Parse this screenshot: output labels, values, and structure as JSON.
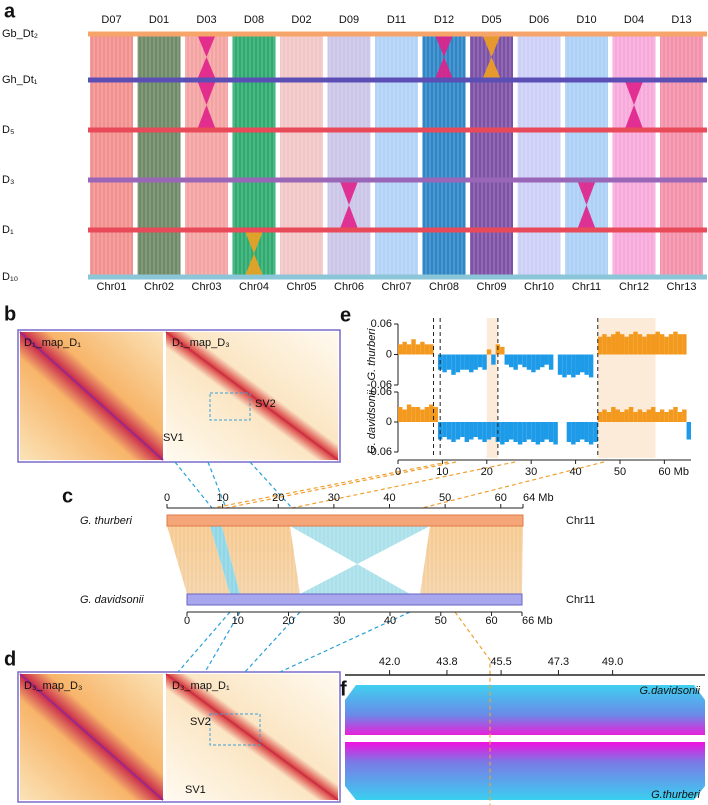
{
  "panel_labels": [
    "a",
    "b",
    "c",
    "d",
    "e",
    "f"
  ],
  "panel_a": {
    "columns": [
      "D07",
      "D01",
      "D03",
      "D08",
      "D02",
      "D09",
      "D11",
      "D12",
      "D05",
      "D06",
      "D10",
      "D04",
      "D13"
    ],
    "chromosomes": [
      "Chr01",
      "Chr02",
      "Chr03",
      "Chr04",
      "Chr05",
      "Chr06",
      "Chr07",
      "Chr08",
      "Chr09",
      "Chr10",
      "Chr11",
      "Chr12",
      "Chr13"
    ],
    "column_colors": [
      "#f2908e",
      "#6e8a66",
      "#f4a3a3",
      "#2fab70",
      "#f3c6c6",
      "#cbc5e8",
      "#b2d2f6",
      "#2f86c6",
      "#7d52a6",
      "#ccd0f6",
      "#acd0f6",
      "#f6a9da",
      "#f391aa"
    ],
    "rows": [
      "Gb_Dt₂",
      "Gh_Dt₁",
      "D₅",
      "D₃",
      "D₁",
      "D₁₀"
    ],
    "row_colors": [
      "#f6a46a",
      "#5b4fb6",
      "#e84a5a",
      "#9a66b8",
      "#e84a5a",
      "#8ac6d8"
    ]
  },
  "panel_b": {
    "titles": [
      "D₁_map_D₁",
      "D₁_map_D₃"
    ],
    "sv_labels": [
      "SV1",
      "SV2"
    ]
  },
  "panel_c": {
    "top": {
      "name": "G. thurberi",
      "chromosome": "Chr11",
      "xlim": [
        0,
        64
      ],
      "xticks": [
        0,
        10,
        20,
        30,
        40,
        50,
        60,
        {
          "value": 64,
          "label": "64 Mb"
        }
      ]
    },
    "bottom": {
      "name": "G. davidsonii",
      "chromosome": "Chr11",
      "xlim": [
        0,
        66
      ],
      "xticks": [
        0,
        10,
        20,
        30,
        40,
        50,
        60,
        {
          "value": 66,
          "label": "66 Mb"
        }
      ]
    }
  },
  "panel_d": {
    "titles": [
      "D₃_map_D₃",
      "D₃_map_D₁"
    ],
    "sv_labels": [
      "SV2",
      "SV1"
    ]
  },
  "panel_e": {
    "type": "bar",
    "xlim": [
      0,
      66
    ],
    "xticks": [
      0,
      10,
      20,
      30,
      40,
      50,
      {
        "value": 60,
        "label": "60 Mb"
      }
    ],
    "positive_color": "#f39a1e",
    "negative_color": "#1e9be8",
    "breakpoints": [
      8,
      9.5,
      22.5,
      45
    ],
    "highlights": [
      [
        20,
        22.5
      ],
      [
        45,
        58
      ]
    ],
    "x": [
      0,
      1,
      2,
      3,
      4,
      5,
      6,
      7,
      8,
      9,
      10,
      11,
      12,
      13,
      14,
      15,
      16,
      17,
      18,
      19,
      20,
      21,
      22,
      23,
      24,
      25,
      26,
      27,
      28,
      29,
      30,
      31,
      32,
      33,
      34,
      35,
      36,
      37,
      38,
      39,
      40,
      41,
      42,
      43,
      44,
      45,
      46,
      47,
      48,
      49,
      50,
      51,
      52,
      53,
      54,
      55,
      56,
      57,
      58,
      59,
      60,
      61,
      62,
      63,
      64,
      65
    ],
    "series": [
      {
        "name": "G. thurberi",
        "ylim": [
          -0.06,
          0.06
        ],
        "yticks": [
          -0.06,
          0,
          0.06
        ],
        "values": [
          0.02,
          0.025,
          0.02,
          0.03,
          0.02,
          0.025,
          0.02,
          0.02,
          null,
          -0.03,
          -0.035,
          -0.03,
          -0.04,
          -0.035,
          -0.03,
          -0.03,
          -0.035,
          -0.03,
          -0.025,
          -0.03,
          0.01,
          -0.02,
          0.02,
          0.015,
          -0.02,
          -0.025,
          -0.03,
          -0.02,
          -0.025,
          -0.03,
          -0.035,
          -0.03,
          -0.025,
          -0.02,
          -0.03,
          null,
          -0.04,
          -0.045,
          -0.04,
          -0.045,
          -0.04,
          -0.035,
          -0.04,
          -0.045,
          null,
          0.035,
          0.04,
          0.035,
          0.04,
          0.045,
          0.04,
          0.035,
          0.04,
          0.045,
          0.04,
          0.035,
          0.04,
          0.04,
          0.045,
          0.04,
          0.035,
          0.04,
          0.045,
          0.04,
          0.04,
          null
        ]
      },
      {
        "name": "G. davidsonii",
        "ylim": [
          -0.06,
          0.06
        ],
        "yticks": [
          -0.06,
          0,
          0.06
        ],
        "values": [
          0.03,
          0.025,
          0.035,
          0.03,
          0.03,
          0.025,
          0.03,
          0.035,
          0.03,
          -0.035,
          -0.03,
          -0.035,
          -0.04,
          -0.035,
          -0.03,
          -0.04,
          -0.035,
          -0.03,
          -0.035,
          -0.04,
          -0.035,
          -0.03,
          -0.04,
          -0.045,
          -0.04,
          -0.035,
          -0.04,
          -0.045,
          -0.04,
          -0.035,
          -0.04,
          -0.045,
          -0.04,
          -0.035,
          -0.04,
          -0.045,
          null,
          null,
          -0.04,
          -0.045,
          -0.04,
          -0.035,
          -0.04,
          -0.045,
          -0.04,
          0.02,
          0.025,
          0.02,
          0.03,
          0.025,
          0.02,
          0.025,
          0.03,
          0.02,
          0.025,
          0.02,
          0.025,
          0.03,
          0.02,
          0.025,
          0.02,
          0.025,
          0.03,
          0.02,
          0.025,
          -0.035
        ]
      }
    ]
  },
  "panel_f": {
    "xlim": [
      40.6,
      51.9
    ],
    "xticks": [
      {
        "value": 42,
        "label": "42.0"
      },
      43.8,
      45.5,
      47.3,
      {
        "value": 49,
        "label": "49.0"
      }
    ],
    "tracks": [
      "G.davidsonii",
      "G.thurberi"
    ]
  }
}
